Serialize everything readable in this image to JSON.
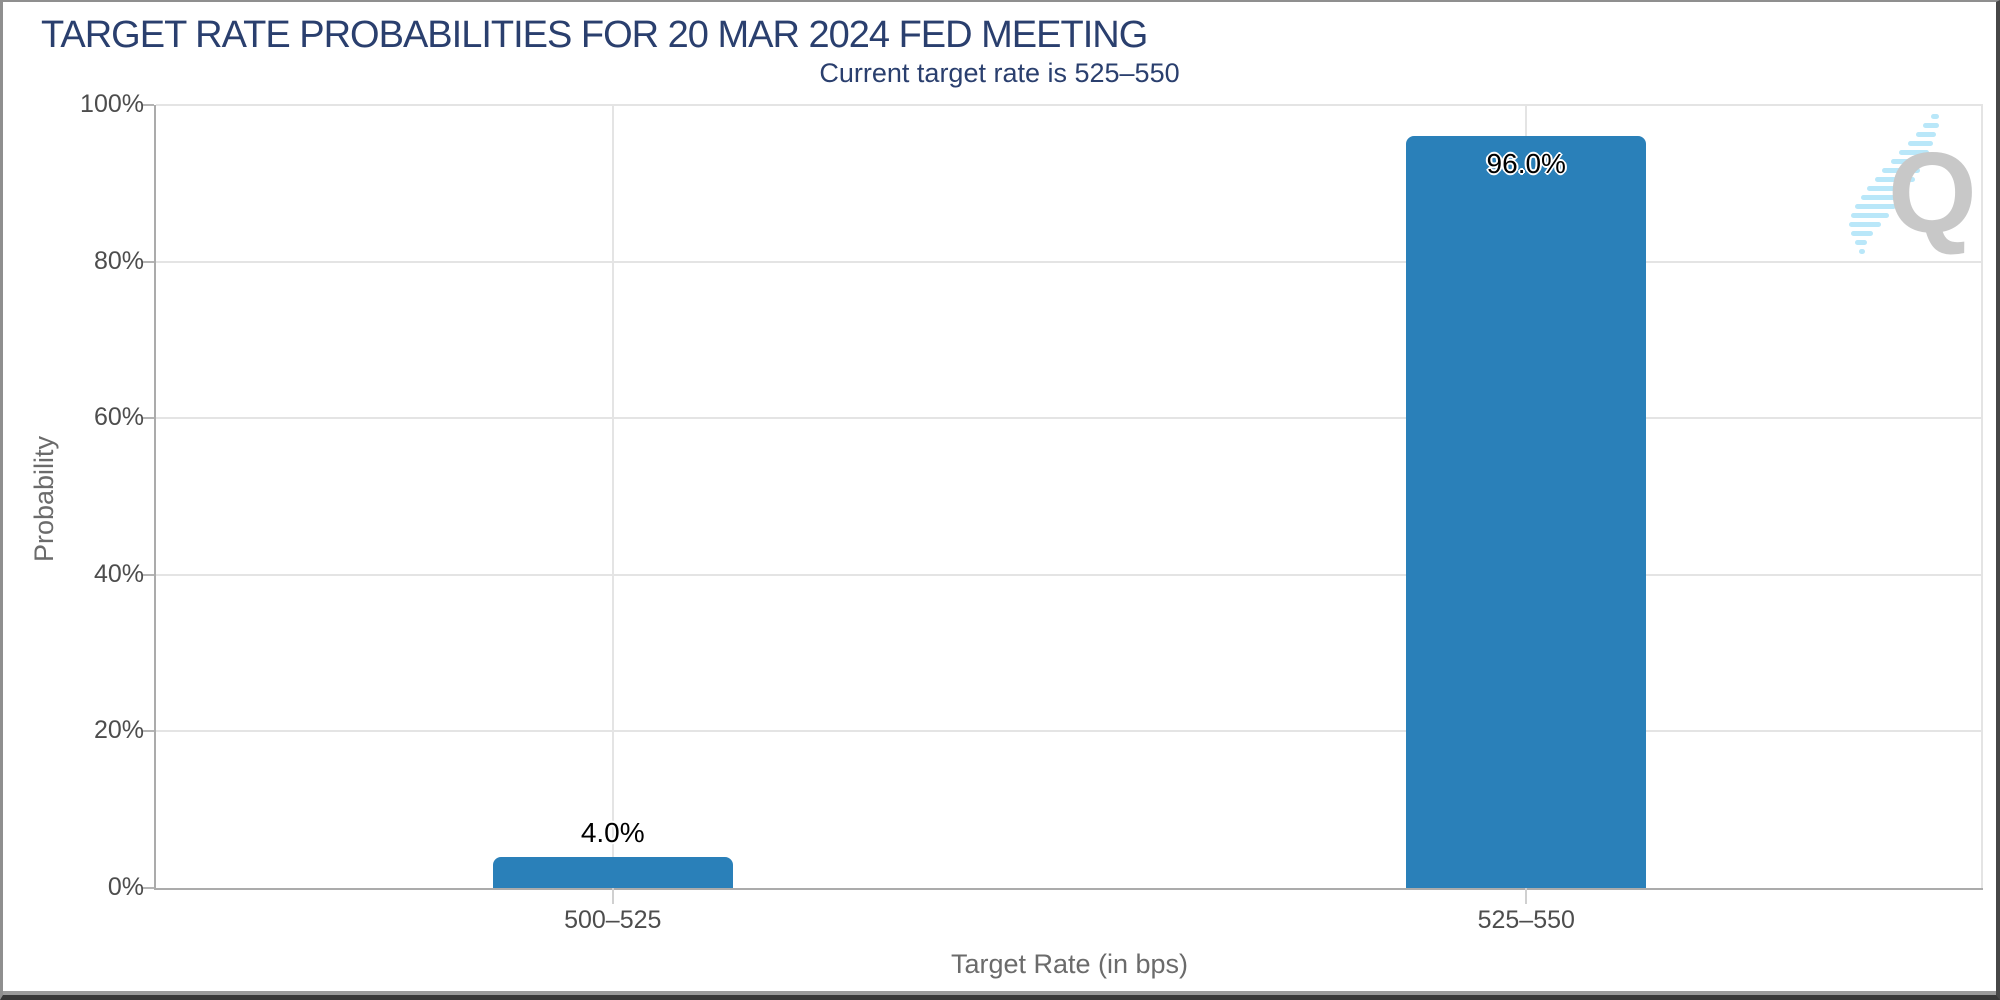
{
  "chart_data": {
    "type": "bar",
    "title": "TARGET RATE PROBABILITIES FOR 20 MAR 2024 FED MEETING",
    "subtitle": "Current target rate is 525–550",
    "categories": [
      "500–525",
      "525–550"
    ],
    "values": [
      4.0,
      96.0
    ],
    "bar_labels": [
      "4.0%",
      "96.0%"
    ],
    "xlabel": "Target Rate (in bps)",
    "ylabel": "Probability",
    "ylim": [
      0,
      100
    ],
    "ytick_values": [
      0,
      20,
      40,
      60,
      80,
      100
    ],
    "ytick_labels": [
      "0%",
      "20%",
      "40%",
      "60%",
      "80%",
      "100%"
    ],
    "grid": true,
    "legend": "none",
    "bar_color": "#2A80B9"
  },
  "watermark": {
    "letter": "Q",
    "letter_color": "#c8c8c8",
    "swoosh_color": "#b9e7f9"
  },
  "colors": {
    "title_navy": "#2A3F6E",
    "axis_line": "#ababab",
    "gridline": "#e4e4e4",
    "tick_text": "#4d4d4d",
    "axis_title_text": "#6b6b6b"
  }
}
